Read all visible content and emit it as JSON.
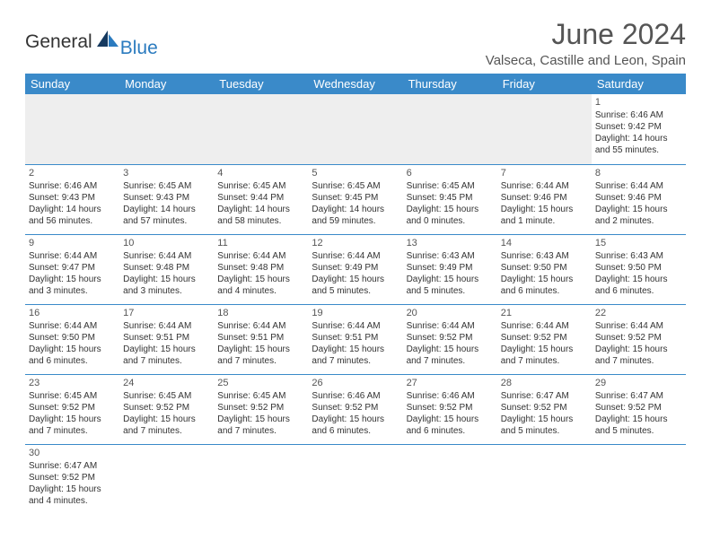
{
  "logo": {
    "general": "General",
    "blue": "Blue"
  },
  "title": "June 2024",
  "location": "Valseca, Castille and Leon, Spain",
  "colors": {
    "header_bg": "#3a8ac9",
    "header_fg": "#ffffff",
    "grid_line": "#3a8ac9",
    "blank_bg": "#eeeeee",
    "text": "#333333",
    "title_text": "#555555",
    "logo_blue": "#2b7bbf"
  },
  "dayHeaders": [
    "Sunday",
    "Monday",
    "Tuesday",
    "Wednesday",
    "Thursday",
    "Friday",
    "Saturday"
  ],
  "weeks": [
    [
      null,
      null,
      null,
      null,
      null,
      null,
      {
        "n": "1",
        "sr": "Sunrise: 6:46 AM",
        "ss": "Sunset: 9:42 PM",
        "dl1": "Daylight: 14 hours",
        "dl2": "and 55 minutes."
      }
    ],
    [
      {
        "n": "2",
        "sr": "Sunrise: 6:46 AM",
        "ss": "Sunset: 9:43 PM",
        "dl1": "Daylight: 14 hours",
        "dl2": "and 56 minutes."
      },
      {
        "n": "3",
        "sr": "Sunrise: 6:45 AM",
        "ss": "Sunset: 9:43 PM",
        "dl1": "Daylight: 14 hours",
        "dl2": "and 57 minutes."
      },
      {
        "n": "4",
        "sr": "Sunrise: 6:45 AM",
        "ss": "Sunset: 9:44 PM",
        "dl1": "Daylight: 14 hours",
        "dl2": "and 58 minutes."
      },
      {
        "n": "5",
        "sr": "Sunrise: 6:45 AM",
        "ss": "Sunset: 9:45 PM",
        "dl1": "Daylight: 14 hours",
        "dl2": "and 59 minutes."
      },
      {
        "n": "6",
        "sr": "Sunrise: 6:45 AM",
        "ss": "Sunset: 9:45 PM",
        "dl1": "Daylight: 15 hours",
        "dl2": "and 0 minutes."
      },
      {
        "n": "7",
        "sr": "Sunrise: 6:44 AM",
        "ss": "Sunset: 9:46 PM",
        "dl1": "Daylight: 15 hours",
        "dl2": "and 1 minute."
      },
      {
        "n": "8",
        "sr": "Sunrise: 6:44 AM",
        "ss": "Sunset: 9:46 PM",
        "dl1": "Daylight: 15 hours",
        "dl2": "and 2 minutes."
      }
    ],
    [
      {
        "n": "9",
        "sr": "Sunrise: 6:44 AM",
        "ss": "Sunset: 9:47 PM",
        "dl1": "Daylight: 15 hours",
        "dl2": "and 3 minutes."
      },
      {
        "n": "10",
        "sr": "Sunrise: 6:44 AM",
        "ss": "Sunset: 9:48 PM",
        "dl1": "Daylight: 15 hours",
        "dl2": "and 3 minutes."
      },
      {
        "n": "11",
        "sr": "Sunrise: 6:44 AM",
        "ss": "Sunset: 9:48 PM",
        "dl1": "Daylight: 15 hours",
        "dl2": "and 4 minutes."
      },
      {
        "n": "12",
        "sr": "Sunrise: 6:44 AM",
        "ss": "Sunset: 9:49 PM",
        "dl1": "Daylight: 15 hours",
        "dl2": "and 5 minutes."
      },
      {
        "n": "13",
        "sr": "Sunrise: 6:43 AM",
        "ss": "Sunset: 9:49 PM",
        "dl1": "Daylight: 15 hours",
        "dl2": "and 5 minutes."
      },
      {
        "n": "14",
        "sr": "Sunrise: 6:43 AM",
        "ss": "Sunset: 9:50 PM",
        "dl1": "Daylight: 15 hours",
        "dl2": "and 6 minutes."
      },
      {
        "n": "15",
        "sr": "Sunrise: 6:43 AM",
        "ss": "Sunset: 9:50 PM",
        "dl1": "Daylight: 15 hours",
        "dl2": "and 6 minutes."
      }
    ],
    [
      {
        "n": "16",
        "sr": "Sunrise: 6:44 AM",
        "ss": "Sunset: 9:50 PM",
        "dl1": "Daylight: 15 hours",
        "dl2": "and 6 minutes."
      },
      {
        "n": "17",
        "sr": "Sunrise: 6:44 AM",
        "ss": "Sunset: 9:51 PM",
        "dl1": "Daylight: 15 hours",
        "dl2": "and 7 minutes."
      },
      {
        "n": "18",
        "sr": "Sunrise: 6:44 AM",
        "ss": "Sunset: 9:51 PM",
        "dl1": "Daylight: 15 hours",
        "dl2": "and 7 minutes."
      },
      {
        "n": "19",
        "sr": "Sunrise: 6:44 AM",
        "ss": "Sunset: 9:51 PM",
        "dl1": "Daylight: 15 hours",
        "dl2": "and 7 minutes."
      },
      {
        "n": "20",
        "sr": "Sunrise: 6:44 AM",
        "ss": "Sunset: 9:52 PM",
        "dl1": "Daylight: 15 hours",
        "dl2": "and 7 minutes."
      },
      {
        "n": "21",
        "sr": "Sunrise: 6:44 AM",
        "ss": "Sunset: 9:52 PM",
        "dl1": "Daylight: 15 hours",
        "dl2": "and 7 minutes."
      },
      {
        "n": "22",
        "sr": "Sunrise: 6:44 AM",
        "ss": "Sunset: 9:52 PM",
        "dl1": "Daylight: 15 hours",
        "dl2": "and 7 minutes."
      }
    ],
    [
      {
        "n": "23",
        "sr": "Sunrise: 6:45 AM",
        "ss": "Sunset: 9:52 PM",
        "dl1": "Daylight: 15 hours",
        "dl2": "and 7 minutes."
      },
      {
        "n": "24",
        "sr": "Sunrise: 6:45 AM",
        "ss": "Sunset: 9:52 PM",
        "dl1": "Daylight: 15 hours",
        "dl2": "and 7 minutes."
      },
      {
        "n": "25",
        "sr": "Sunrise: 6:45 AM",
        "ss": "Sunset: 9:52 PM",
        "dl1": "Daylight: 15 hours",
        "dl2": "and 7 minutes."
      },
      {
        "n": "26",
        "sr": "Sunrise: 6:46 AM",
        "ss": "Sunset: 9:52 PM",
        "dl1": "Daylight: 15 hours",
        "dl2": "and 6 minutes."
      },
      {
        "n": "27",
        "sr": "Sunrise: 6:46 AM",
        "ss": "Sunset: 9:52 PM",
        "dl1": "Daylight: 15 hours",
        "dl2": "and 6 minutes."
      },
      {
        "n": "28",
        "sr": "Sunrise: 6:47 AM",
        "ss": "Sunset: 9:52 PM",
        "dl1": "Daylight: 15 hours",
        "dl2": "and 5 minutes."
      },
      {
        "n": "29",
        "sr": "Sunrise: 6:47 AM",
        "ss": "Sunset: 9:52 PM",
        "dl1": "Daylight: 15 hours",
        "dl2": "and 5 minutes."
      }
    ],
    [
      {
        "n": "30",
        "sr": "Sunrise: 6:47 AM",
        "ss": "Sunset: 9:52 PM",
        "dl1": "Daylight: 15 hours",
        "dl2": "and 4 minutes."
      },
      null,
      null,
      null,
      null,
      null,
      null
    ]
  ]
}
